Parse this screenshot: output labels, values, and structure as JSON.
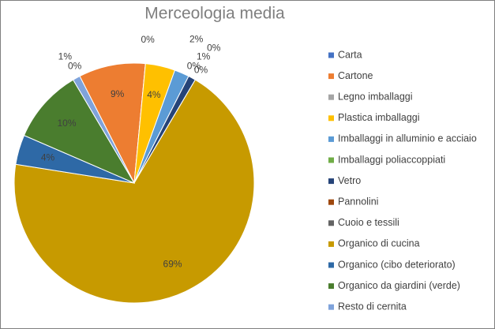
{
  "chart_data": {
    "type": "pie",
    "title": "Merceologia media",
    "categories": [
      "Carta",
      "Cartone",
      "Legno imballaggi",
      "Plastica imballaggi",
      "Imballaggi in alluminio e acciaio",
      "Imballaggi poliaccoppiati",
      "Vetro",
      "Pannolini",
      "Cuoio e tessili",
      "Organico di cucina",
      "Organico (cibo deteriorato)",
      "Organico da giardini (verde)",
      "Resto di cernita"
    ],
    "values": [
      0,
      9,
      0,
      4,
      2,
      0,
      1,
      0,
      0,
      69,
      4,
      10,
      1
    ],
    "value_labels": [
      "0%",
      "9%",
      "0%",
      "4%",
      "2%",
      "0%",
      "1%",
      "0%",
      "0%",
      "69%",
      "4%",
      "10%",
      "1%"
    ],
    "colors": [
      "#4472c4",
      "#ed7d31",
      "#a5a5a5",
      "#ffc000",
      "#5b9bd5",
      "#70ad47",
      "#264478",
      "#9e480e",
      "#636363",
      "#c79a00",
      "#2e69a6",
      "#4a7d2e",
      "#7fa3db"
    ],
    "legend": "right"
  }
}
